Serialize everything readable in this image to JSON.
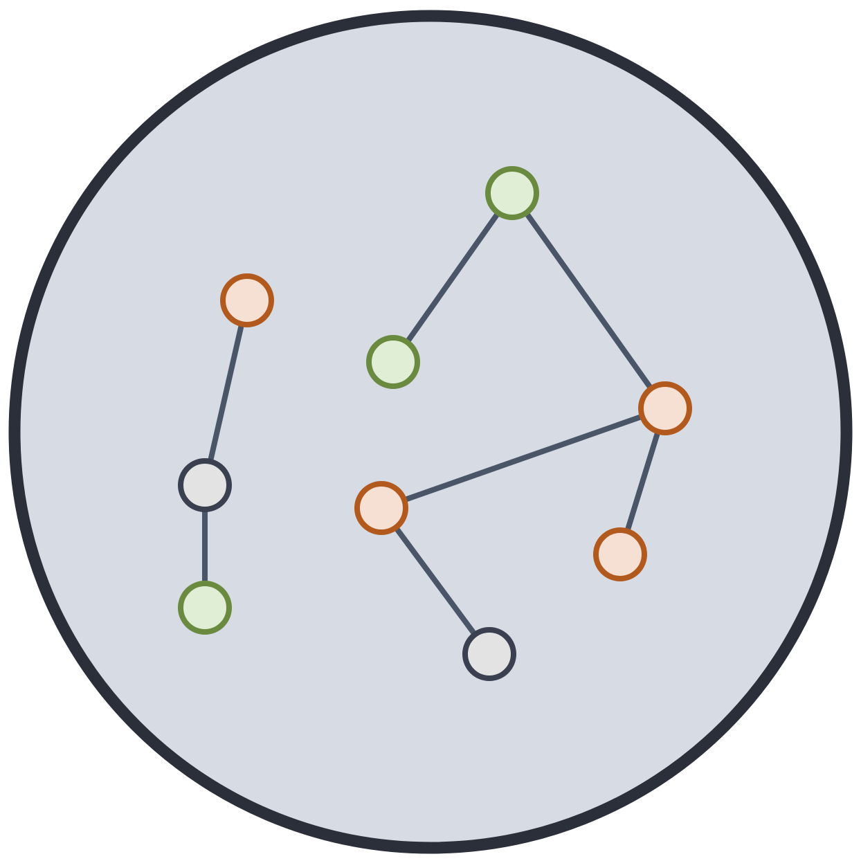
{
  "colors": {
    "background": "#ffffff",
    "disc_fill": "#d6dbe4",
    "disc_stroke": "#2a2f3a",
    "edge": "#4a5568",
    "green_fill": "#e1eed6",
    "green_stroke": "#6a8a40",
    "orange_fill": "#f5e0d3",
    "orange_stroke": "#b25a1e",
    "gray_fill": "#e3e3e4",
    "gray_stroke": "#3a4050"
  },
  "diagram": {
    "components": 2,
    "nodes": [
      {
        "id": "n1",
        "kind": "orange"
      },
      {
        "id": "n2",
        "kind": "gray"
      },
      {
        "id": "n3",
        "kind": "green"
      },
      {
        "id": "n4",
        "kind": "green"
      },
      {
        "id": "n5",
        "kind": "green"
      },
      {
        "id": "n6",
        "kind": "orange"
      },
      {
        "id": "n7",
        "kind": "orange"
      },
      {
        "id": "n8",
        "kind": "orange"
      },
      {
        "id": "n9",
        "kind": "gray"
      }
    ],
    "edges": [
      {
        "from": "n1",
        "to": "n2"
      },
      {
        "from": "n2",
        "to": "n3"
      },
      {
        "from": "n4",
        "to": "n5"
      },
      {
        "from": "n4",
        "to": "n6"
      },
      {
        "from": "n6",
        "to": "n7"
      },
      {
        "from": "n6",
        "to": "n8"
      },
      {
        "from": "n7",
        "to": "n9"
      }
    ]
  }
}
